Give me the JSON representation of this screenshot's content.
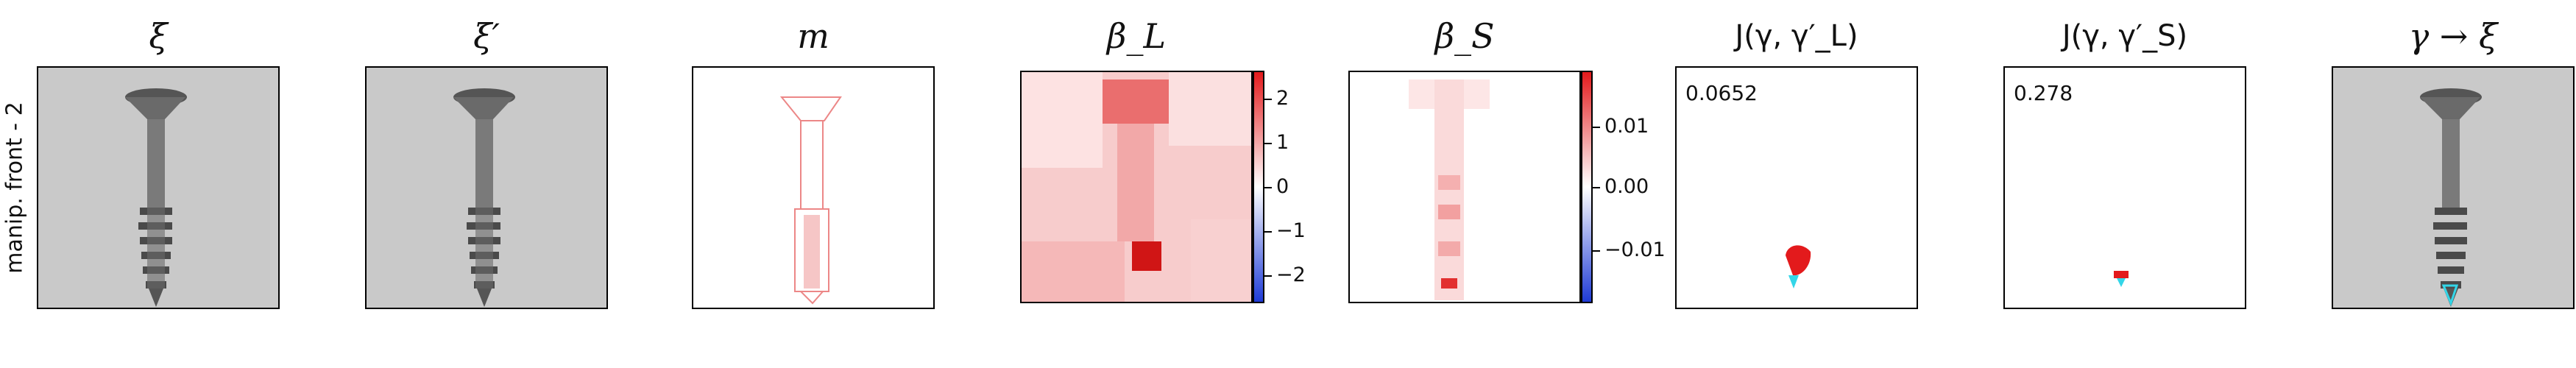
{
  "row_label": "manip. front - 2",
  "panels": [
    {
      "title": "ξ"
    },
    {
      "title": "ξ′"
    },
    {
      "title": "m"
    },
    {
      "title": "β_L",
      "colorbar_ticks": [
        "2",
        "1",
        "0",
        "−1",
        "−2"
      ]
    },
    {
      "title": "β_S",
      "colorbar_ticks": [
        "0.01",
        "0.00",
        "−0.01"
      ]
    },
    {
      "title": "J(γ, γ′_L)",
      "score": "0.0652"
    },
    {
      "title": "J(γ, γ′_S)",
      "score": "0.278"
    },
    {
      "title": "γ → ξ"
    }
  ],
  "colors": {
    "positive": "#e31a1c",
    "negative": "#1f3bd6",
    "overlay": "#33d6e8"
  }
}
